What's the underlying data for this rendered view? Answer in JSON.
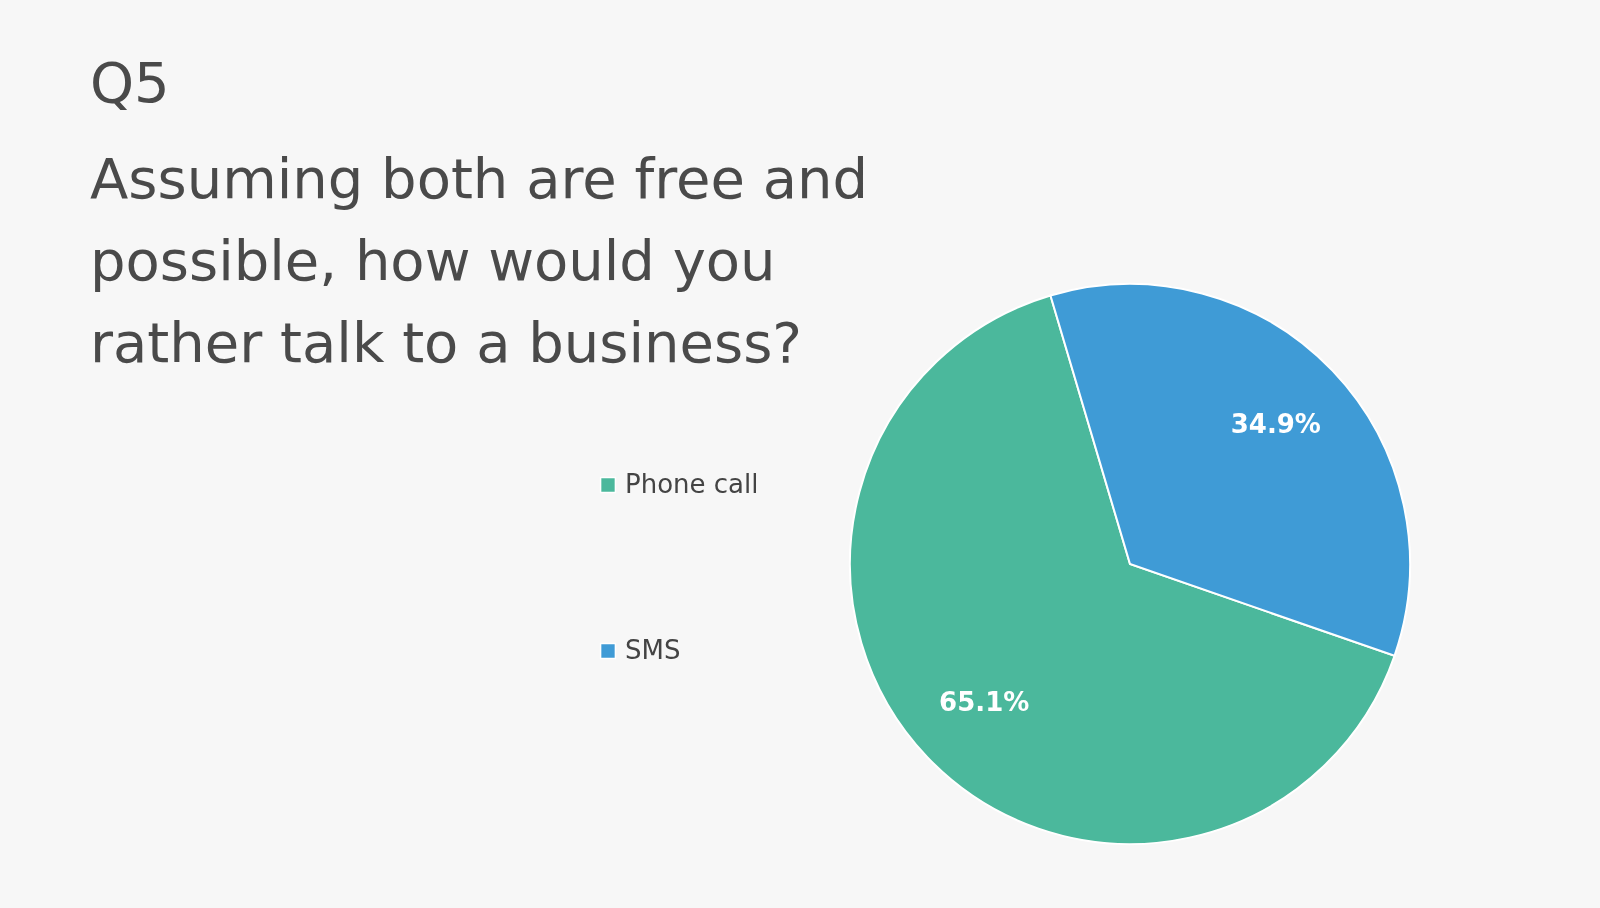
{
  "chart_data": {
    "type": "pie",
    "title": "Q5",
    "subtitle": "Assuming both are free and possible, how would you rather talk to a business?",
    "categories": [
      "Phone call",
      "SMS"
    ],
    "values": [
      65.1,
      34.9
    ],
    "colors": [
      "#4bb89c",
      "#3f9bd6"
    ],
    "value_labels": [
      "65.1%",
      "34.9%"
    ],
    "legend": "left"
  }
}
